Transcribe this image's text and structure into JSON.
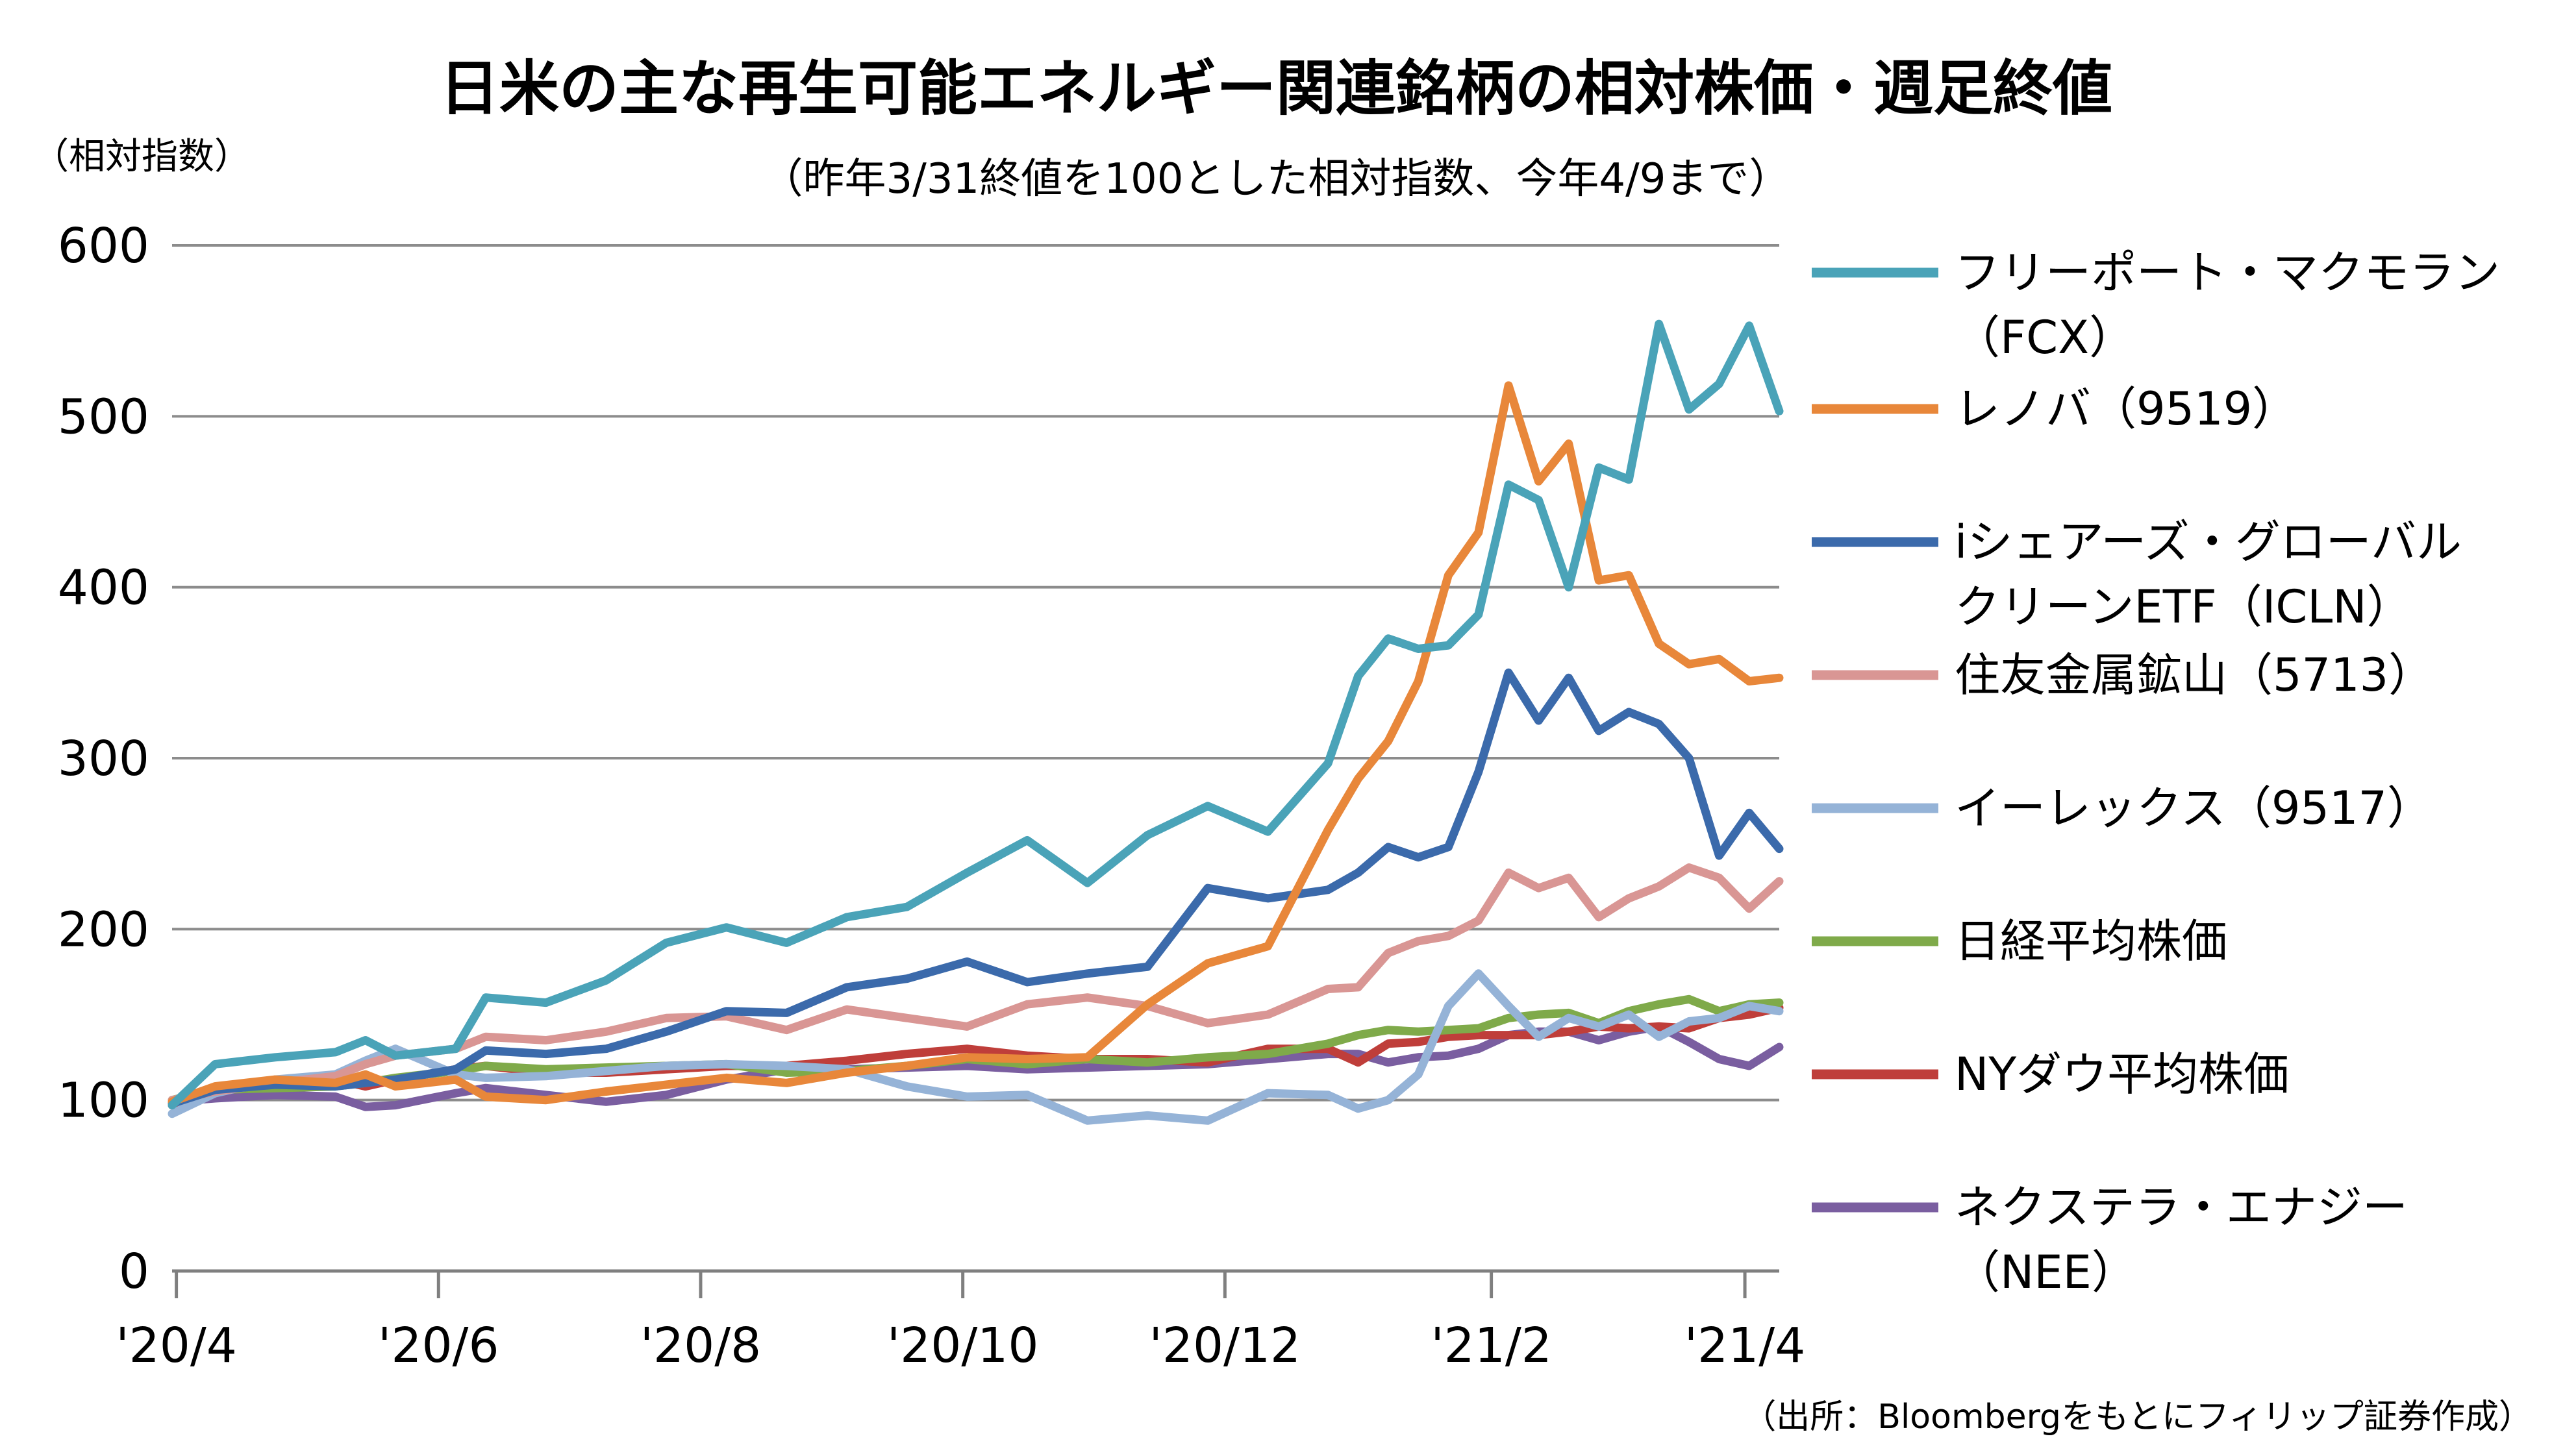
{
  "chart_data": {
    "type": "line",
    "title": "日米の主な再生可能エネルギー関連銘柄の相対株価・週足終値",
    "subtitle": "（昨年3/31終値を100とした相対指数、今年4/9まで）",
    "ylabel": "（相対指数）",
    "source": "（出所：Bloombergをもとにフィリップ証券作成）",
    "ylim": [
      0,
      600
    ],
    "y_ticks": [
      "0",
      "100",
      "200",
      "300",
      "400",
      "500",
      "600"
    ],
    "x_tick_labels": [
      "'20/4",
      "'20/6",
      "'20/8",
      "'20/10",
      "'20/12",
      "'21/2",
      "'21/4"
    ],
    "x_range": [
      "2020-03-31",
      "2021-04-09"
    ],
    "x": [
      "2020-03-31",
      "2020-04-10",
      "2020-04-24",
      "2020-05-08",
      "2020-05-15",
      "2020-05-22",
      "2020-06-05",
      "2020-06-12",
      "2020-06-26",
      "2020-07-10",
      "2020-07-24",
      "2020-08-07",
      "2020-08-21",
      "2020-09-04",
      "2020-09-18",
      "2020-10-02",
      "2020-10-16",
      "2020-10-30",
      "2020-11-13",
      "2020-11-27",
      "2020-12-11",
      "2020-12-25",
      "2021-01-01",
      "2021-01-08",
      "2021-01-15",
      "2021-01-22",
      "2021-01-29",
      "2021-02-05",
      "2021-02-12",
      "2021-02-19",
      "2021-02-26",
      "2021-03-05",
      "2021-03-12",
      "2021-03-19",
      "2021-03-26",
      "2021-04-02",
      "2021-04-09"
    ],
    "series": [
      {
        "name": "フリーポート・マクモラン",
        "name2": "（FCX）",
        "color": "#4aa3b8",
        "values": [
          97,
          121,
          125,
          128,
          135,
          126,
          130,
          160,
          157,
          170,
          192,
          201,
          192,
          207,
          213,
          233,
          252,
          227,
          255,
          272,
          257,
          297,
          348,
          370,
          364,
          366,
          384,
          460,
          451,
          400,
          470,
          463,
          554,
          504,
          519,
          553,
          503
        ]
      },
      {
        "name": "レノバ（9519）",
        "name2": "",
        "color": "#e8873a",
        "values": [
          99,
          108,
          112,
          110,
          115,
          108,
          112,
          102,
          100,
          105,
          109,
          113,
          110,
          116,
          120,
          125,
          124,
          125,
          156,
          180,
          190,
          258,
          288,
          310,
          345,
          407,
          432,
          518,
          462,
          484,
          404,
          407,
          367,
          355,
          358,
          345,
          347
        ]
      },
      {
        "name": "iシェアーズ・グローバル",
        "name2": "クリーンETF（ICLN）",
        "color": "#3b6aab",
        "values": [
          98,
          106,
          109,
          108,
          110,
          112,
          118,
          129,
          127,
          130,
          140,
          152,
          151,
          166,
          171,
          181,
          169,
          174,
          178,
          224,
          218,
          223,
          233,
          248,
          242,
          248,
          292,
          350,
          322,
          347,
          316,
          327,
          320,
          300,
          243,
          268,
          247
        ]
      },
      {
        "name": "住友金属鉱山（5713）",
        "name2": "",
        "color": "#d99694",
        "values": [
          100,
          105,
          110,
          114,
          121,
          126,
          130,
          137,
          135,
          140,
          148,
          149,
          141,
          153,
          148,
          143,
          156,
          160,
          155,
          145,
          150,
          165,
          166,
          186,
          193,
          196,
          205,
          233,
          224,
          230,
          207,
          218,
          225,
          236,
          230,
          212,
          228
        ]
      },
      {
        "name": "イーレックス（9517）",
        "name2": "",
        "color": "#95b3d7",
        "values": [
          92,
          104,
          112,
          115,
          123,
          130,
          115,
          113,
          114,
          117,
          120,
          121,
          120,
          118,
          108,
          102,
          103,
          88,
          91,
          88,
          104,
          103,
          95,
          100,
          115,
          155,
          174,
          155,
          137,
          148,
          143,
          150,
          137,
          146,
          148,
          155,
          152
        ]
      },
      {
        "name": "日経平均株価",
        "name2": "",
        "color": "#7faa4a",
        "values": [
          100,
          106,
          107,
          108,
          110,
          113,
          117,
          120,
          118,
          119,
          120,
          121,
          116,
          117,
          120,
          124,
          121,
          124,
          122,
          125,
          127,
          133,
          138,
          141,
          140,
          141,
          142,
          148,
          150,
          151,
          145,
          152,
          156,
          159,
          152,
          156,
          157
        ]
      },
      {
        "name": "NYダウ平均株価",
        "name2": "",
        "color": "#bf3e3a",
        "values": [
          97,
          107,
          111,
          112,
          108,
          112,
          118,
          120,
          116,
          116,
          118,
          120,
          120,
          123,
          127,
          130,
          126,
          124,
          124,
          122,
          130,
          130,
          122,
          133,
          134,
          137,
          138,
          138,
          138,
          140,
          143,
          142,
          143,
          142,
          148,
          150,
          154
        ]
      },
      {
        "name": "ネクステラ・エナジー",
        "name2": "（NEE）",
        "color": "#7a5ea0",
        "values": [
          99,
          101,
          103,
          102,
          96,
          97,
          104,
          107,
          103,
          99,
          103,
          112,
          118,
          118,
          119,
          120,
          118,
          119,
          120,
          121,
          124,
          127,
          127,
          122,
          125,
          126,
          130,
          138,
          140,
          140,
          135,
          140,
          143,
          134,
          124,
          120,
          131
        ]
      }
    ]
  }
}
